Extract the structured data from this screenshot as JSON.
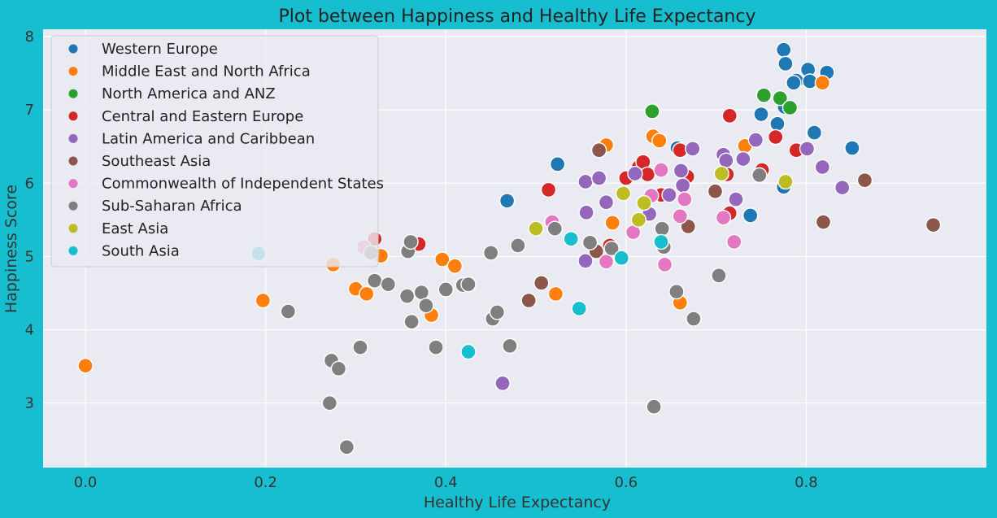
{
  "chart_data": {
    "type": "scatter",
    "title": "Plot between Happiness and Healthy Life Expectancy",
    "xlabel": "Healthy Life Expectancy",
    "ylabel": "Happiness Score",
    "xlim": [
      -0.047,
      1.0
    ],
    "ylim": [
      2.12,
      8.1
    ],
    "xticks": [
      0.0,
      0.2,
      0.4,
      0.6,
      0.8
    ],
    "xtick_labels": [
      "0.0",
      "0.2",
      "0.4",
      "0.6",
      "0.8"
    ],
    "yticks": [
      3,
      4,
      5,
      6,
      7,
      8
    ],
    "ytick_labels": [
      "3",
      "4",
      "5",
      "6",
      "7",
      "8"
    ],
    "grid": true,
    "legend_position": "top-left",
    "colors": {
      "page_background": "#17becf",
      "plot_background": "#eaeaf2",
      "grid": "#ffffff",
      "marker_edge": "#ffffff"
    },
    "series": [
      {
        "name": "Western Europe",
        "color": "#1f77b4",
        "points": [
          [
            0.775,
            7.82
          ],
          [
            0.777,
            7.63
          ],
          [
            0.802,
            7.55
          ],
          [
            0.823,
            7.51
          ],
          [
            0.789,
            7.4
          ],
          [
            0.804,
            7.39
          ],
          [
            0.786,
            7.37
          ],
          [
            0.776,
            7.04
          ],
          [
            0.75,
            6.94
          ],
          [
            0.768,
            6.81
          ],
          [
            0.809,
            6.69
          ],
          [
            0.657,
            6.48
          ],
          [
            0.851,
            6.48
          ],
          [
            0.524,
            6.26
          ],
          [
            0.775,
            5.95
          ],
          [
            0.468,
            5.76
          ],
          [
            0.738,
            5.56
          ]
        ]
      },
      {
        "name": "Middle East and North Africa",
        "color": "#ff7f0e",
        "points": [
          [
            0.0,
            3.51
          ],
          [
            0.197,
            4.4
          ],
          [
            0.275,
            4.89
          ],
          [
            0.3,
            4.56
          ],
          [
            0.312,
            4.49
          ],
          [
            0.328,
            5.01
          ],
          [
            0.396,
            4.96
          ],
          [
            0.41,
            4.87
          ],
          [
            0.384,
            4.2
          ],
          [
            0.522,
            4.49
          ],
          [
            0.585,
            5.46
          ],
          [
            0.66,
            4.37
          ],
          [
            0.578,
            6.52
          ],
          [
            0.63,
            6.64
          ],
          [
            0.637,
            6.58
          ],
          [
            0.818,
            7.37
          ],
          [
            0.732,
            6.51
          ]
        ]
      },
      {
        "name": "North America and ANZ",
        "color": "#2ca02c",
        "points": [
          [
            0.629,
            6.98
          ],
          [
            0.753,
            7.2
          ],
          [
            0.771,
            7.16
          ],
          [
            0.782,
            7.03
          ]
        ]
      },
      {
        "name": "Central and Eastern Europe",
        "color": "#d62728",
        "points": [
          [
            0.321,
            5.24
          ],
          [
            0.37,
            5.17
          ],
          [
            0.514,
            5.91
          ],
          [
            0.582,
            5.15
          ],
          [
            0.6,
            6.07
          ],
          [
            0.614,
            6.22
          ],
          [
            0.619,
            6.29
          ],
          [
            0.624,
            6.12
          ],
          [
            0.639,
            5.84
          ],
          [
            0.66,
            6.45
          ],
          [
            0.668,
            6.09
          ],
          [
            0.715,
            6.92
          ],
          [
            0.712,
            6.12
          ],
          [
            0.766,
            6.63
          ],
          [
            0.789,
            6.45
          ],
          [
            0.751,
            6.18
          ],
          [
            0.715,
            5.59
          ]
        ]
      },
      {
        "name": "Latin America and Caribbean",
        "color": "#9467bd",
        "points": [
          [
            0.463,
            3.27
          ],
          [
            0.555,
            4.94
          ],
          [
            0.556,
            5.6
          ],
          [
            0.555,
            6.02
          ],
          [
            0.57,
            6.07
          ],
          [
            0.578,
            5.74
          ],
          [
            0.61,
            6.13
          ],
          [
            0.626,
            5.58
          ],
          [
            0.648,
            5.84
          ],
          [
            0.661,
            6.17
          ],
          [
            0.663,
            5.97
          ],
          [
            0.674,
            6.47
          ],
          [
            0.708,
            6.39
          ],
          [
            0.711,
            6.31
          ],
          [
            0.722,
            5.78
          ],
          [
            0.73,
            6.33
          ],
          [
            0.744,
            6.59
          ],
          [
            0.801,
            6.47
          ],
          [
            0.818,
            6.22
          ],
          [
            0.84,
            5.94
          ]
        ]
      },
      {
        "name": "Southeast Asia",
        "color": "#8c564b",
        "points": [
          [
            0.492,
            4.4
          ],
          [
            0.506,
            4.64
          ],
          [
            0.567,
            5.07
          ],
          [
            0.57,
            6.45
          ],
          [
            0.669,
            5.41
          ],
          [
            0.699,
            5.89
          ],
          [
            0.819,
            5.47
          ],
          [
            0.865,
            6.04
          ],
          [
            0.941,
            5.43
          ]
        ]
      },
      {
        "name": "Commonwealth of Independent States",
        "color": "#e377c2",
        "points": [
          [
            0.309,
            5.13
          ],
          [
            0.518,
            5.47
          ],
          [
            0.578,
            4.93
          ],
          [
            0.608,
            5.33
          ],
          [
            0.628,
            5.83
          ],
          [
            0.639,
            6.18
          ],
          [
            0.643,
            4.89
          ],
          [
            0.66,
            5.55
          ],
          [
            0.665,
            5.78
          ],
          [
            0.708,
            5.53
          ],
          [
            0.72,
            5.2
          ]
        ]
      },
      {
        "name": "Sub-Saharan Africa",
        "color": "#7f7f7f",
        "points": [
          [
            0.225,
            4.25
          ],
          [
            0.271,
            3.0
          ],
          [
            0.273,
            3.58
          ],
          [
            0.281,
            3.47
          ],
          [
            0.29,
            2.4
          ],
          [
            0.305,
            3.76
          ],
          [
            0.317,
            5.05
          ],
          [
            0.321,
            4.67
          ],
          [
            0.336,
            4.62
          ],
          [
            0.357,
            4.46
          ],
          [
            0.358,
            5.07
          ],
          [
            0.361,
            5.2
          ],
          [
            0.362,
            4.11
          ],
          [
            0.373,
            4.51
          ],
          [
            0.378,
            4.33
          ],
          [
            0.389,
            3.76
          ],
          [
            0.4,
            4.55
          ],
          [
            0.419,
            4.61
          ],
          [
            0.425,
            4.62
          ],
          [
            0.45,
            5.05
          ],
          [
            0.452,
            4.15
          ],
          [
            0.457,
            4.24
          ],
          [
            0.471,
            3.78
          ],
          [
            0.48,
            5.15
          ],
          [
            0.521,
            5.38
          ],
          [
            0.56,
            5.19
          ],
          [
            0.584,
            5.11
          ],
          [
            0.631,
            2.95
          ],
          [
            0.64,
            5.38
          ],
          [
            0.642,
            5.13
          ],
          [
            0.656,
            4.52
          ],
          [
            0.675,
            4.15
          ],
          [
            0.703,
            4.74
          ],
          [
            0.748,
            6.11
          ]
        ]
      },
      {
        "name": "East Asia",
        "color": "#bcbd22",
        "points": [
          [
            0.5,
            5.38
          ],
          [
            0.597,
            5.86
          ],
          [
            0.614,
            5.5
          ],
          [
            0.62,
            5.73
          ],
          [
            0.706,
            6.13
          ],
          [
            0.777,
            6.02
          ]
        ]
      },
      {
        "name": "South Asia",
        "color": "#17becf",
        "points": [
          [
            0.192,
            5.04
          ],
          [
            0.425,
            3.7
          ],
          [
            0.539,
            5.24
          ],
          [
            0.548,
            4.29
          ],
          [
            0.595,
            4.98
          ],
          [
            0.639,
            5.2
          ]
        ]
      }
    ]
  }
}
